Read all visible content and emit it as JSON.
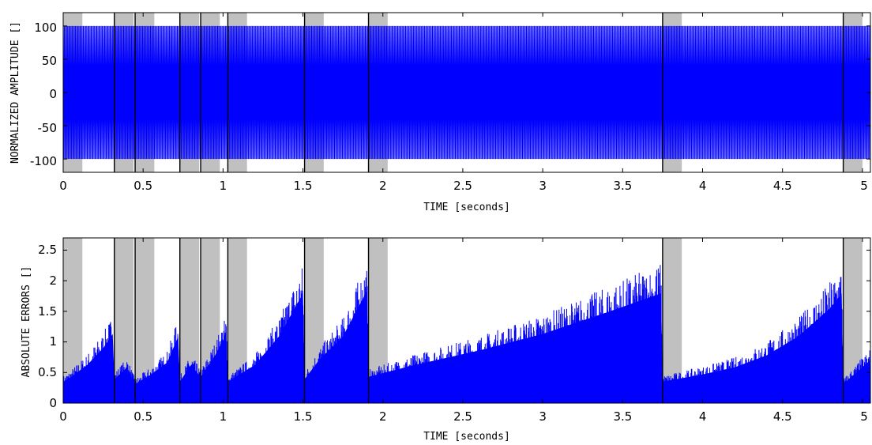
{
  "chart_data": [
    {
      "type": "line",
      "xlabel": "TIME [seconds]",
      "ylabel": "NORMALIZED AMPLITUDE []",
      "xlim": [
        0,
        5.05
      ],
      "ylim": [
        -120,
        120
      ],
      "xticks": [
        "0",
        "0.5",
        "1",
        "1.5",
        "2",
        "2.5",
        "3",
        "3.5",
        "4",
        "4.5",
        "5"
      ],
      "yticks": [
        "-100",
        "-50",
        "0",
        "50",
        "100"
      ],
      "grid": false,
      "line_color": "#0000ff",
      "highlight_color": "#c0c0c0",
      "signal": {
        "description": "dense oscillating signal filling the band between about -100 and 100 across the whole time range",
        "amplitude": 100
      },
      "events": [
        0.0,
        0.32,
        0.45,
        0.73,
        0.86,
        1.03,
        1.51,
        1.91,
        3.75,
        4.88
      ],
      "highlight_width_s": 0.12
    },
    {
      "type": "area",
      "xlabel": "TIME [seconds]",
      "ylabel": "ABSOLUTE ERRORS []",
      "xlim": [
        0,
        5.05
      ],
      "ylim": [
        0,
        2.7
      ],
      "xticks": [
        "0",
        "0.5",
        "1",
        "1.5",
        "2",
        "2.5",
        "3",
        "3.5",
        "4",
        "4.5",
        "5"
      ],
      "yticks": [
        "0",
        "0.5",
        "1",
        "1.5",
        "2",
        "2.5"
      ],
      "grid": false,
      "line_color": "#0000ff",
      "highlight_color": "#c0c0c0",
      "events": [
        0.0,
        0.32,
        0.45,
        0.73,
        0.86,
        1.03,
        1.51,
        1.91,
        3.75,
        4.88
      ],
      "highlight_width_s": 0.12,
      "envelope": {
        "x": [
          0.0,
          0.05,
          0.15,
          0.25,
          0.31,
          0.32,
          0.4,
          0.45,
          0.55,
          0.65,
          0.72,
          0.73,
          0.8,
          0.86,
          0.95,
          1.02,
          1.03,
          1.2,
          1.35,
          1.5,
          1.51,
          1.6,
          1.75,
          1.9,
          1.91,
          2.2,
          2.6,
          3.0,
          3.4,
          3.74,
          3.75,
          4.0,
          4.2,
          4.4,
          4.6,
          4.8,
          4.87,
          4.88,
          5.05
        ],
        "y": [
          0.45,
          0.55,
          0.8,
          1.15,
          1.45,
          0.5,
          0.75,
          0.4,
          0.6,
          0.85,
          1.4,
          0.45,
          0.8,
          0.55,
          1.0,
          1.45,
          0.45,
          0.8,
          1.4,
          2.3,
          0.5,
          0.9,
          1.4,
          2.35,
          0.55,
          0.8,
          1.1,
          1.45,
          1.9,
          2.3,
          0.45,
          0.6,
          0.75,
          1.0,
          1.4,
          2.0,
          2.3,
          0.4,
          0.9
        ]
      }
    }
  ]
}
